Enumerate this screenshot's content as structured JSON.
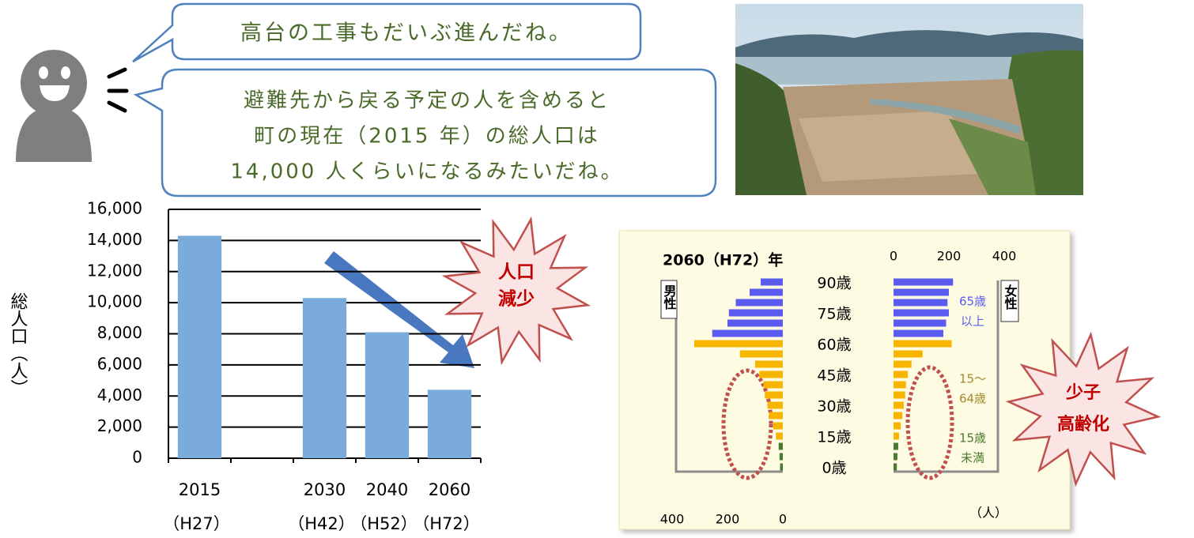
{
  "speech": {
    "short": "高台の工事もだいぶ進んだね。",
    "long": [
      "避難先から戻る予定の人を含めると",
      "町の現在（2015 年）の総人口は",
      "14,000 人くらいになるみたいだね。"
    ]
  },
  "chart_data": [
    {
      "type": "bar",
      "categories": [
        "2015",
        null,
        "2030",
        "2040",
        "2060"
      ],
      "era_labels": [
        "（H27）",
        null,
        "（H42）",
        "（H52）",
        "（H72）"
      ],
      "values": [
        14300,
        null,
        10300,
        8100,
        4400
      ],
      "color": "#7aabdb",
      "ylabel": "総人口（人）",
      "ylim": [
        0,
        16000
      ],
      "yticks": [
        0,
        {
          "value": 2000,
          "label": "2,000"
        },
        {
          "value": 4000,
          "label": "4,000"
        },
        {
          "value": 6000,
          "label": "6,000"
        },
        {
          "value": 8000,
          "label": "8,000"
        },
        {
          "value": 10000,
          "label": "10,000"
        },
        {
          "value": 12000,
          "label": "12,000"
        },
        {
          "value": 14000,
          "label": "14,000"
        },
        {
          "value": 16000,
          "label": "16,000"
        }
      ],
      "grid": true,
      "annotation": [
        "人口",
        "減少"
      ]
    },
    {
      "type": "pyramid",
      "title": "2060（H72）年",
      "categories": [
        "90歳",
        null,
        null,
        "75歳",
        null,
        null,
        "60歳",
        null,
        null,
        "45歳",
        null,
        null,
        "30歳",
        null,
        null,
        "15歳",
        null,
        null,
        "0歳"
      ],
      "colors": [
        "#5b5bf0",
        "#5b5bf0",
        "#5b5bf0",
        "#5b5bf0",
        "#5b5bf0",
        "#5b5bf0",
        "#f7b500",
        "#f7b500",
        "#f7b500",
        "#f7b500",
        "#f7b500",
        "#f7b500",
        "#f7b500",
        "#f7b500",
        "#f7b500",
        "#f7b500",
        "#4a7a2f",
        "#4a7a2f",
        "#4a7a2f"
      ],
      "series": [
        {
          "name": "男性",
          "values": [
            80,
            120,
            170,
            195,
            200,
            255,
            320,
            155,
            100,
            85,
            70,
            65,
            55,
            50,
            35,
            25,
            15,
            12,
            10
          ]
        },
        {
          "name": "女性",
          "values": [
            215,
            200,
            195,
            200,
            190,
            180,
            210,
            105,
            65,
            52,
            45,
            42,
            37,
            32,
            26,
            20,
            17,
            14,
            12
          ]
        }
      ],
      "xlim": [
        0,
        400
      ],
      "xticks": [
        0,
        200,
        400
      ],
      "unit": "（人）",
      "group_labels": [
        {
          "lines": [
            "65歳",
            "以上"
          ],
          "color": "#5b5bf0"
        },
        {
          "lines": [
            "15～",
            "64歳"
          ],
          "color": "#a08a30"
        },
        {
          "lines": [
            "15歳",
            "未満"
          ],
          "color": "#4a7a2f"
        }
      ],
      "annotation": [
        "少子",
        "高齢化"
      ]
    }
  ]
}
